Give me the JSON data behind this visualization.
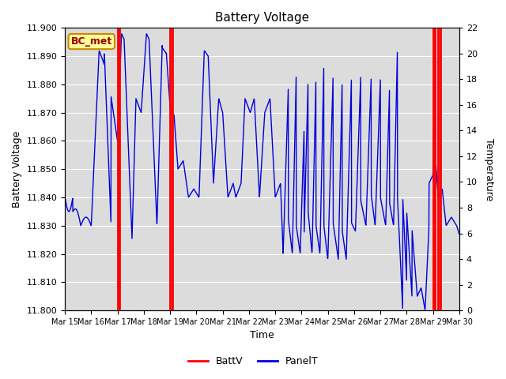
{
  "title": "Battery Voltage",
  "xlabel": "Time",
  "ylabel_left": "Battery Voltage",
  "ylabel_right": "Temperature",
  "ylim_left": [
    11.8,
    11.9
  ],
  "ylim_right": [
    0,
    22
  ],
  "yticks_left": [
    11.8,
    11.81,
    11.82,
    11.83,
    11.84,
    11.85,
    11.86,
    11.87,
    11.88,
    11.89,
    11.9
  ],
  "yticks_right": [
    0,
    2,
    4,
    6,
    8,
    10,
    12,
    14,
    16,
    18,
    20,
    22
  ],
  "xtick_labels": [
    "Mar 15",
    "Mar 16",
    "Mar 17",
    "Mar 18",
    "Mar 19",
    "Mar 20",
    "Mar 21",
    "Mar 22",
    "Mar 23",
    "Mar 24",
    "Mar 25",
    "Mar 26",
    "Mar 27",
    "Mar 28",
    "Mar 29",
    "Mar 30"
  ],
  "bg_color": "#dcdcdc",
  "line_color": "#0000dd",
  "vline_color": "#ff0000",
  "annotation_label": "BC_met",
  "annotation_bg": "#ffff99",
  "annotation_border": "#cc8800",
  "legend_items": [
    {
      "label": "BattV",
      "color": "#ff0000",
      "lw": 2
    },
    {
      "label": "PanelT",
      "color": "#0000dd",
      "lw": 2
    }
  ],
  "vline_positions": [
    2.0,
    2.08,
    4.0,
    4.08,
    14.0,
    14.08,
    14.2,
    14.28
  ],
  "figsize": [
    6.4,
    4.8
  ],
  "dpi": 100
}
